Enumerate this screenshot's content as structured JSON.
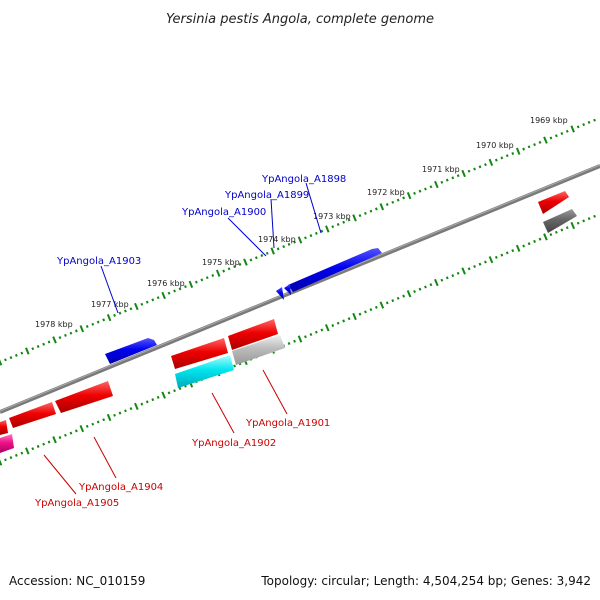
{
  "title": "Yersinia pestis Angola, complete genome",
  "accession": "Accession: NC_010159",
  "summary": "Topology: circular; Length: 4,504,254 bp; Genes: 3,942",
  "kbp_labels": [
    "1969 kbp",
    "1970 kbp",
    "1971 kbp",
    "1972 kbp",
    "1973 kbp",
    "1974 kbp",
    "1975 kbp",
    "1976 kbp",
    "1977 kbp",
    "1978 kbp"
  ],
  "genes_top": [
    "YpAngola_A1898",
    "YpAngola_A1899",
    "YpAngola_A1900",
    "YpAngola_A1903"
  ],
  "genes_bottom": [
    "YpAngola_A1901",
    "YpAngola_A1902",
    "YpAngola_A1904",
    "YpAngola_A1905"
  ],
  "colors": {
    "forward": "#0000ee",
    "reverse": "#ee0000",
    "backbone": "#777777",
    "tick": "#118811",
    "cyan": "#00e5ee",
    "grey": "#bbbbbb",
    "magenta": "#ee1188",
    "darkgrey": "#666666"
  }
}
